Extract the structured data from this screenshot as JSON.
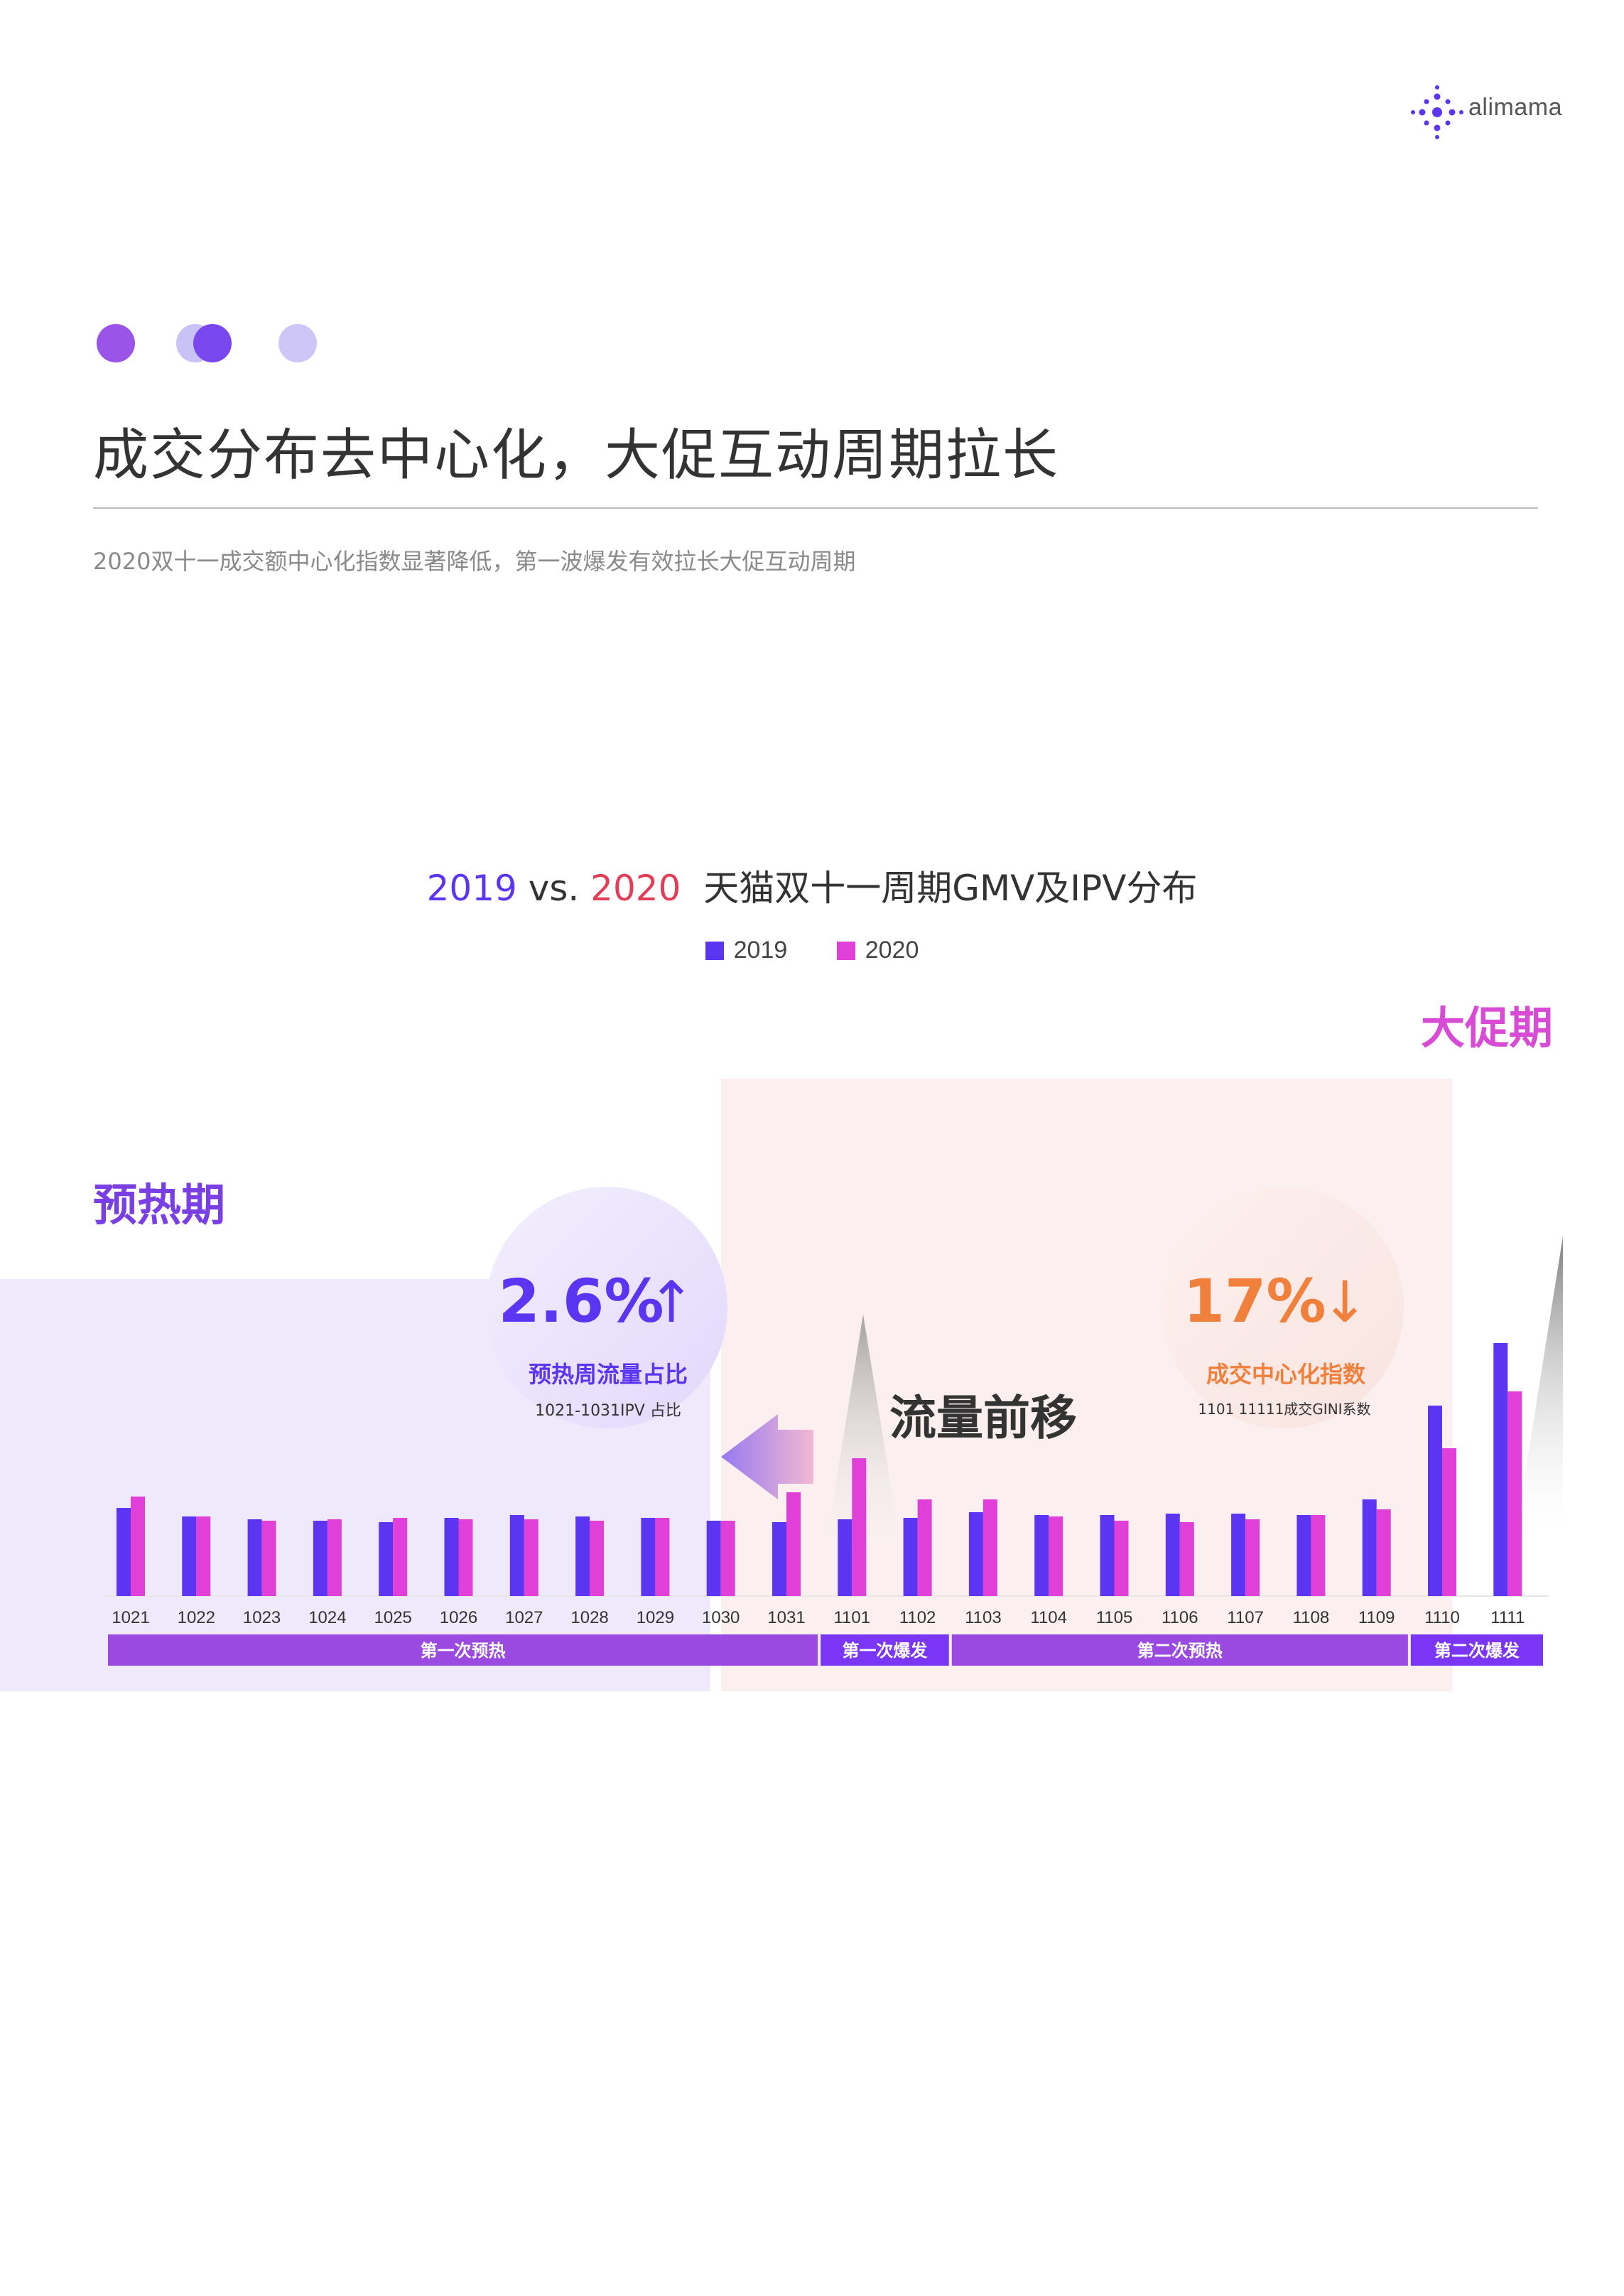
{
  "brand": {
    "logo_text": "alimama"
  },
  "page": {
    "title": "成交分布去中心化，大促互动周期拉长",
    "subtitle": "2020双十一成交额中心化指数显著降低，第一波爆发有效拉长大促互动周期"
  },
  "chart_data": {
    "type": "bar",
    "title_year_a": "2019",
    "title_vs": " vs. ",
    "title_year_b": "2020",
    "title_rest": "  天猫双十一周期GMV及IPV分布",
    "categories": [
      "1021",
      "1022",
      "1023",
      "1024",
      "1025",
      "1026",
      "1027",
      "1028",
      "1029",
      "1030",
      "1031",
      "1101",
      "1102",
      "1103",
      "1104",
      "1105",
      "1106",
      "1107",
      "1108",
      "1109",
      "1110",
      "1111"
    ],
    "series": [
      {
        "name": "2019",
        "color": "#5b35f2",
        "values": [
          3.1,
          2.8,
          2.7,
          2.65,
          2.6,
          2.75,
          2.85,
          2.8,
          2.75,
          2.65,
          2.6,
          2.7,
          2.75,
          2.95,
          2.85,
          2.85,
          2.9,
          2.9,
          2.85,
          3.4,
          6.7,
          8.9
        ]
      },
      {
        "name": "2020",
        "color": "#e040d8",
        "values": [
          3.5,
          2.8,
          2.65,
          2.7,
          2.75,
          2.7,
          2.7,
          2.65,
          2.75,
          2.65,
          3.65,
          4.85,
          3.4,
          3.4,
          2.8,
          2.65,
          2.6,
          2.7,
          2.85,
          3.05,
          5.2,
          7.2
        ]
      }
    ],
    "ylim": [
      0,
      10
    ],
    "phases": [
      {
        "label": "第一次预热",
        "from": "1021",
        "to": "1031"
      },
      {
        "label": "第一次爆发",
        "from": "1101",
        "to": "1102"
      },
      {
        "label": "第二次预热",
        "from": "1103",
        "to": "1109"
      },
      {
        "label": "第二次爆发",
        "from": "1110",
        "to": "1111"
      }
    ],
    "annotations": {
      "preheat_label": "预热期",
      "promo_label": "大促期",
      "shift_label": "流量前移",
      "left_circle": {
        "big": "2.6%",
        "arrow": "↑",
        "line1": "预热周流量占比",
        "line2": "1021-1031IPV 占比"
      },
      "right_circle": {
        "big": "17%",
        "arrow": "↓",
        "line1": "成交中心化指数",
        "line2": "1101  11111成交GINI系数"
      }
    }
  },
  "colors": {
    "dot1": "#9a55e8",
    "dot2a": "#c9c2f7",
    "dot2b": "#7848ee",
    "dot3": "#cdc6f7",
    "purple_band": "#9a4ae0",
    "bright_band": "#7a35f5",
    "preheat_bg": "#efeafb",
    "promo_bg": "#fbeeee",
    "preheat_text": "#7a3fe4",
    "promo_text": "#d84bd5",
    "orange": "#f0803c"
  }
}
